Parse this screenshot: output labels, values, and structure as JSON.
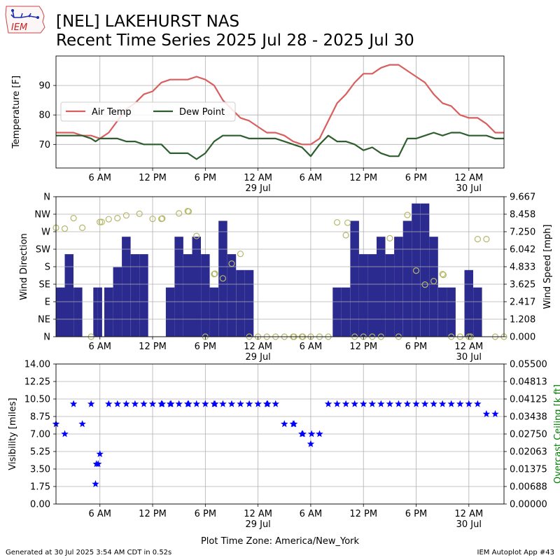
{
  "header": {
    "title_line1": "[NEL] LAKEHURST NAS",
    "title_line2": "Recent Time Series 2025 Jul 28 - 2025 Jul 30",
    "logo_text": "IEM"
  },
  "footer": {
    "generated": "Generated at 30 Jul 2025 3:54 AM CDT in 0.52s",
    "app": "IEM Autoplot App #43"
  },
  "colors": {
    "air_temp": "#d95f5f",
    "dew_point": "#2e5e2e",
    "wind_bar": "#2b2b8f",
    "wind_circle": "#b5b86a",
    "visibility": "#0000ff",
    "ceiling_label": "#008000"
  },
  "chart_data": [
    {
      "type": "line",
      "panel": "temperature",
      "ylabel": "Temperature [F]",
      "ylim": [
        62,
        100
      ],
      "yticks": [
        70,
        80,
        90
      ],
      "xlim_hours": [
        0,
        51
      ],
      "xticks": [
        {
          "h": 5,
          "label": "6 AM",
          "sub": ""
        },
        {
          "h": 11,
          "label": "12 PM",
          "sub": ""
        },
        {
          "h": 17,
          "label": "6 PM",
          "sub": ""
        },
        {
          "h": 23,
          "label": "12 AM",
          "sub": "29 Jul"
        },
        {
          "h": 29,
          "label": "6 AM",
          "sub": ""
        },
        {
          "h": 35,
          "label": "12 PM",
          "sub": ""
        },
        {
          "h": 41,
          "label": "6 PM",
          "sub": ""
        },
        {
          "h": 47,
          "label": "12 AM",
          "sub": "30 Jul"
        }
      ],
      "grid": true,
      "legend_position": "center-left",
      "series": [
        {
          "name": "Air Temp",
          "x": [
            0,
            1,
            2,
            3,
            4,
            5,
            6,
            7,
            8,
            9,
            10,
            11,
            12,
            13,
            14,
            15,
            16,
            17,
            18,
            19,
            20,
            21,
            22,
            23,
            24,
            25,
            26,
            27,
            28,
            29,
            30,
            31,
            32,
            33,
            34,
            35,
            36,
            37,
            38,
            39,
            40,
            41,
            42,
            43,
            44,
            45,
            46,
            47,
            48,
            49,
            50,
            51
          ],
          "values": [
            74,
            74,
            74,
            73,
            73,
            72,
            74,
            78,
            82,
            84,
            87,
            88,
            91,
            92,
            92,
            92,
            93,
            92,
            90,
            85,
            82,
            79,
            78,
            76,
            74,
            74,
            73,
            71,
            70,
            70,
            72,
            78,
            84,
            87,
            91,
            94,
            94,
            96,
            97,
            97,
            95,
            93,
            91,
            87,
            84,
            83,
            80,
            79,
            79,
            77,
            74,
            74
          ]
        },
        {
          "name": "Dew Point",
          "x": [
            0,
            1,
            2,
            3,
            4,
            4.5,
            5,
            6,
            7,
            8,
            9,
            10,
            11,
            12,
            13,
            14,
            15,
            16,
            17,
            18,
            19,
            20,
            21,
            22,
            23,
            24,
            25,
            26,
            27,
            28,
            29,
            30,
            31,
            32,
            33,
            34,
            35,
            36,
            37,
            38,
            39,
            40,
            41,
            42,
            43,
            44,
            45,
            46,
            47,
            48,
            49,
            50,
            51
          ],
          "values": [
            73,
            73,
            73,
            73,
            72,
            71,
            72,
            72,
            72,
            71,
            71,
            70,
            70,
            70,
            67,
            67,
            67,
            65,
            67,
            71,
            73,
            73,
            73,
            72,
            72,
            72,
            72,
            71,
            70,
            69,
            66,
            70,
            73,
            71,
            71,
            70,
            68,
            69,
            67,
            66,
            66,
            72,
            72,
            73,
            74,
            73,
            74,
            74,
            73,
            73,
            73,
            72,
            72
          ]
        }
      ]
    },
    {
      "type": "bar",
      "panel": "wind",
      "ylabel": "Wind Direction",
      "y2label": "Wind Speed [mph]",
      "direction_ticks": [
        "N",
        "NE",
        "E",
        "SE",
        "S",
        "SW",
        "W",
        "NW",
        "N"
      ],
      "direction_ylim": [
        0,
        360
      ],
      "speed_ylim": [
        0,
        9.667
      ],
      "speed_ticks": [
        "0.000",
        "1.208",
        "2.417",
        "3.625",
        "4.833",
        "6.042",
        "7.250",
        "8.458",
        "9.667"
      ],
      "grid": true,
      "bars_speed_mph": {
        "x": [
          0.5,
          1.5,
          2.5,
          4.5,
          5,
          6,
          7,
          8,
          9,
          10,
          13,
          14,
          15,
          16,
          17,
          18,
          19,
          20,
          21,
          22,
          32,
          33,
          34,
          35,
          36,
          37,
          38,
          39,
          40,
          41,
          42,
          43,
          44,
          45,
          47,
          48
        ],
        "width": [
          1,
          1,
          1,
          0.5,
          0.5,
          1,
          1,
          1,
          1,
          1,
          1,
          1,
          1,
          1,
          1,
          1,
          1,
          1,
          1,
          1,
          1,
          1,
          1,
          1,
          1,
          1,
          1,
          1,
          1,
          1,
          1,
          1,
          1,
          1,
          1,
          1
        ],
        "values": [
          3.4,
          5.7,
          3.4,
          3.4,
          3.4,
          3.4,
          4.8,
          6.9,
          5.7,
          5.7,
          3.4,
          6.9,
          5.7,
          6.9,
          5.7,
          3.4,
          8.0,
          5.7,
          4.6,
          4.6,
          3.4,
          3.4,
          8.0,
          5.7,
          5.7,
          6.9,
          5.7,
          6.9,
          8.0,
          9.2,
          9.2,
          6.9,
          3.4,
          3.4,
          4.6,
          3.4
        ]
      },
      "circles_direction_deg": {
        "x": [
          0,
          1,
          2,
          3,
          4,
          5,
          5.2,
          6,
          7,
          8,
          9.5,
          11,
          12,
          12.1,
          14,
          15,
          15.1,
          16,
          17,
          18,
          18.1,
          19,
          20,
          21,
          22,
          23,
          24,
          25,
          26,
          27,
          27.1,
          28,
          28.1,
          29,
          30,
          31,
          32,
          33,
          33.2,
          34,
          35,
          36,
          37,
          38,
          39,
          40,
          41,
          42,
          43,
          44,
          44.1,
          45,
          46,
          47,
          47.2,
          48,
          49,
          50,
          51
        ],
        "values": [
          280,
          278,
          305,
          280,
          0,
          295,
          295,
          302,
          305,
          312,
          316,
          303,
          303,
          304,
          317,
          323,
          322,
          259,
          0,
          161,
          162,
          150,
          188,
          213,
          0,
          0,
          0,
          0,
          0,
          0,
          0,
          0,
          0,
          0,
          0,
          0,
          294,
          261,
          293,
          0,
          0,
          0,
          0,
          253,
          0,
          313,
          170,
          134,
          143,
          161,
          159,
          0,
          0,
          0,
          0,
          251,
          251,
          0,
          0
        ]
      }
    },
    {
      "type": "scatter",
      "panel": "visibility",
      "ylabel": "Visibility [miles]",
      "y2label": "Overcast Ceiling [k ft]",
      "ylim": [
        0,
        14
      ],
      "yticks": [
        "0.00",
        "1.75",
        "3.50",
        "5.25",
        "7.00",
        "8.75",
        "10.50",
        "12.25",
        "14.00"
      ],
      "y2lim": [
        0,
        0.055
      ],
      "y2ticks": [
        "0.00000",
        "0.00688",
        "0.01375",
        "0.02063",
        "0.02750",
        "0.03438",
        "0.04125",
        "0.04813",
        "0.05500"
      ],
      "grid": true,
      "xlabel": "Plot Time Zone: America/New_York",
      "series": [
        {
          "name": "Visibility",
          "x": [
            0,
            1,
            2,
            3,
            4,
            4.5,
            4.6,
            4.8,
            5,
            6,
            7,
            8,
            9,
            10,
            11,
            12,
            12.1,
            13,
            13.1,
            14,
            15,
            15.1,
            16,
            17,
            18,
            18.1,
            19,
            20,
            21,
            22,
            23,
            24,
            24.1,
            25,
            26,
            27,
            27.1,
            28,
            28.1,
            29,
            29.1,
            30,
            31,
            32,
            33,
            34,
            35,
            36,
            37,
            38,
            39,
            40,
            41,
            42,
            43,
            44,
            45,
            46,
            47,
            48,
            49,
            50
          ],
          "values": [
            8,
            7,
            10,
            8,
            10,
            2,
            4,
            4,
            5,
            10,
            10,
            10,
            10,
            10,
            10,
            10,
            10,
            10,
            10,
            10,
            10,
            10,
            10,
            10,
            10,
            10,
            10,
            10,
            10,
            10,
            10,
            10,
            10,
            10,
            8,
            8,
            8,
            7,
            7,
            6,
            7,
            7,
            10,
            10,
            10,
            10,
            10,
            10,
            10,
            10,
            10,
            10,
            10,
            10,
            10,
            10,
            10,
            10,
            10,
            10,
            9,
            9
          ]
        }
      ]
    }
  ]
}
